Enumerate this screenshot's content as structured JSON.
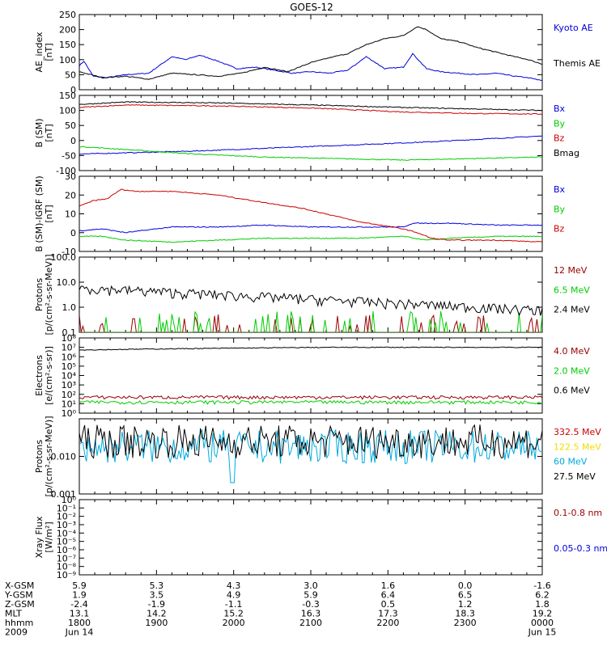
{
  "title": "GOES-12",
  "colors": {
    "black": "#000000",
    "blue": "#0000dd",
    "red": "#cc0000",
    "green": "#00cc00",
    "cyan": "#00aadd",
    "yellow": "#eedd00",
    "darkred": "#990000"
  },
  "chart_data": [
    {
      "type": "line",
      "ylabel": "AE_index\n[nT]",
      "ylim": [
        0,
        250
      ],
      "yticks": [
        "0",
        "50",
        "100",
        "150",
        "200",
        "250"
      ],
      "series": [
        {
          "name": "Kyoto AE",
          "color": "blue",
          "x": [
            0,
            0.01,
            0.03,
            0.06,
            0.1,
            0.15,
            0.2,
            0.23,
            0.26,
            0.3,
            0.34,
            0.38,
            0.42,
            0.46,
            0.5,
            0.54,
            0.58,
            0.62,
            0.66,
            0.7,
            0.72,
            0.75,
            0.78,
            0.82,
            0.86,
            0.9,
            0.94,
            0.97,
            1
          ],
          "values": [
            80,
            95,
            45,
            40,
            50,
            55,
            110,
            100,
            115,
            95,
            70,
            75,
            65,
            55,
            60,
            55,
            65,
            110,
            70,
            75,
            120,
            70,
            60,
            55,
            50,
            55,
            45,
            40,
            30
          ]
        },
        {
          "name": "Themis AE",
          "color": "black",
          "x": [
            0,
            0.05,
            0.1,
            0.15,
            0.2,
            0.25,
            0.3,
            0.35,
            0.4,
            0.45,
            0.5,
            0.55,
            0.58,
            0.62,
            0.66,
            0.7,
            0.73,
            0.75,
            0.78,
            0.82,
            0.86,
            0.9,
            0.94,
            0.97,
            1
          ],
          "values": [
            60,
            40,
            45,
            35,
            55,
            50,
            45,
            55,
            75,
            60,
            90,
            110,
            120,
            150,
            170,
            180,
            210,
            200,
            170,
            160,
            140,
            125,
            110,
            100,
            85
          ]
        }
      ]
    },
    {
      "type": "line",
      "ylabel": "B (SM)\n[nT]",
      "ylim": [
        -100,
        150
      ],
      "yticks": [
        "-100",
        "-50",
        "0",
        "50",
        "100",
        "150"
      ],
      "series": [
        {
          "name": "Bx",
          "color": "blue",
          "x": [
            0,
            0.25,
            0.5,
            0.75,
            1
          ],
          "values": [
            -45,
            -35,
            -20,
            -5,
            15
          ]
        },
        {
          "name": "By",
          "color": "green",
          "x": [
            0,
            0.1,
            0.25,
            0.4,
            0.55,
            0.7,
            0.85,
            1
          ],
          "values": [
            -20,
            -30,
            -45,
            -55,
            -60,
            -65,
            -60,
            -55
          ]
        },
        {
          "name": "Bz",
          "color": "red",
          "x": [
            0,
            0.1,
            0.3,
            0.5,
            0.7,
            0.85,
            1
          ],
          "values": [
            110,
            118,
            115,
            108,
            95,
            90,
            88
          ]
        },
        {
          "name": "Bmag",
          "color": "black",
          "x": [
            0,
            0.1,
            0.3,
            0.5,
            0.7,
            0.85,
            1
          ],
          "values": [
            120,
            128,
            125,
            118,
            110,
            105,
            100
          ]
        }
      ]
    },
    {
      "type": "line",
      "ylabel": "B (SM)-IGRF (SM)\n[nT]",
      "ylim": [
        -10,
        30
      ],
      "yticks": [
        "-10",
        "0",
        "10",
        "20",
        "30"
      ],
      "series": [
        {
          "name": "Bx",
          "color": "blue",
          "x": [
            0,
            0.05,
            0.1,
            0.2,
            0.3,
            0.4,
            0.5,
            0.6,
            0.7,
            0.72,
            0.8,
            0.9,
            1
          ],
          "values": [
            1,
            2,
            0,
            3,
            3,
            4,
            3,
            3,
            3,
            5,
            5,
            4,
            4
          ]
        },
        {
          "name": "By",
          "color": "green",
          "x": [
            0,
            0.05,
            0.1,
            0.2,
            0.3,
            0.4,
            0.5,
            0.6,
            0.7,
            0.75,
            0.8,
            0.9,
            1
          ],
          "values": [
            -2,
            -2,
            -4,
            -5,
            -4,
            -3,
            -3,
            -3,
            -2,
            -4,
            -3,
            -2,
            -2
          ]
        },
        {
          "name": "Bz",
          "color": "red",
          "x": [
            0,
            0.03,
            0.06,
            0.09,
            0.12,
            0.2,
            0.3,
            0.4,
            0.48,
            0.55,
            0.6,
            0.65,
            0.7,
            0.73,
            0.76,
            0.8,
            0.9,
            1
          ],
          "values": [
            14,
            17,
            18,
            23,
            22,
            22,
            20,
            16,
            13,
            9,
            6,
            4,
            2,
            0,
            -3,
            -4,
            -4,
            -5
          ]
        }
      ]
    },
    {
      "type": "line",
      "ylabel": "Protons\n[p/(cm²-s-sr-MeV)]",
      "log": true,
      "ylim": [
        0.1,
        100
      ],
      "yticks": [
        "0.1",
        "1.0",
        "10.0",
        "100.0"
      ],
      "series": [
        {
          "name": "12 MeV",
          "color": "darkred",
          "noise": "spiky-low",
          "level": 0.15
        },
        {
          "name": "6.5 MeV",
          "color": "green",
          "noise": "spiky-low",
          "level": 0.2
        },
        {
          "name": "2.4 MeV",
          "color": "black",
          "noise": "decay",
          "level": 6
        }
      ]
    },
    {
      "type": "line",
      "ylabel": "Electrons\n[e/(cm²-s-sr)]",
      "log": true,
      "ylim": [
        1,
        100000000.0
      ],
      "yticks": [
        "10⁰",
        "10¹",
        "10²",
        "10³",
        "10⁴",
        "10⁵",
        "10⁶",
        "10⁷",
        "10⁸"
      ],
      "series": [
        {
          "name": "4.0 MeV",
          "color": "darkred",
          "noise": "flat",
          "level": 50
        },
        {
          "name": "2.0 MeV",
          "color": "green",
          "noise": "flat",
          "level": 15
        },
        {
          "name": "0.6 MeV",
          "color": "black",
          "noise": "rise",
          "level": 10000000.0
        }
      ]
    },
    {
      "type": "line",
      "ylabel": "Protons\n[p/(cm²-s-sr-MeV)]",
      "log": true,
      "ylim": [
        0.001,
        0.1
      ],
      "yticks": [
        "0.001",
        "0.010"
      ],
      "series": [
        {
          "name": "332.5 MeV",
          "color": "red",
          "noise": "none",
          "level": 0.02
        },
        {
          "name": "122.5 MeV",
          "color": "yellow",
          "noise": "none",
          "level": 0.02
        },
        {
          "name": "60 MeV",
          "color": "cyan",
          "noise": "noisy",
          "level": 0.018
        },
        {
          "name": "27.5 MeV",
          "color": "black",
          "noise": "noisy",
          "level": 0.025
        }
      ]
    },
    {
      "type": "line",
      "ylabel": "Xray Flux\n[W/m²]",
      "log": true,
      "ylim": [
        1e-09,
        1
      ],
      "yticks": [
        "10⁻⁹",
        "10⁻⁸",
        "10⁻⁷",
        "10⁻⁶",
        "10⁻⁵",
        "10⁻⁴",
        "10⁻³",
        "10⁻²",
        "10⁻¹",
        "10⁰"
      ],
      "series": [
        {
          "name": "0.1-0.8 nm",
          "color": "darkred",
          "noise": "none",
          "level": 0
        },
        {
          "name": "0.05-0.3 nm",
          "color": "blue",
          "noise": "none",
          "level": 0
        }
      ]
    }
  ],
  "xaxis": {
    "rows": [
      {
        "label": "X-GSM",
        "values": [
          "5.9",
          "5.3",
          "4.3",
          "3.0",
          "1.6",
          "0.0",
          "-1.6"
        ]
      },
      {
        "label": "Y-GSM",
        "values": [
          "1.9",
          "3.5",
          "4.9",
          "5.9",
          "6.4",
          "6.5",
          "6.2"
        ]
      },
      {
        "label": "Z-GSM",
        "values": [
          "-2.4",
          "-1.9",
          "-1.1",
          "-0.3",
          "0.5",
          "1.2",
          "1.8"
        ]
      },
      {
        "label": "MLT",
        "values": [
          "13.1",
          "14.2",
          "15.2",
          "16.3",
          "17.3",
          "18.3",
          "19.2"
        ]
      },
      {
        "label": "hhmm",
        "values": [
          "1800",
          "1900",
          "2000",
          "2100",
          "2200",
          "2300",
          "0000"
        ]
      },
      {
        "label": "2009",
        "values": [
          "Jun 14",
          "",
          "",
          "",
          "",
          "",
          "Jun 15"
        ]
      }
    ]
  }
}
